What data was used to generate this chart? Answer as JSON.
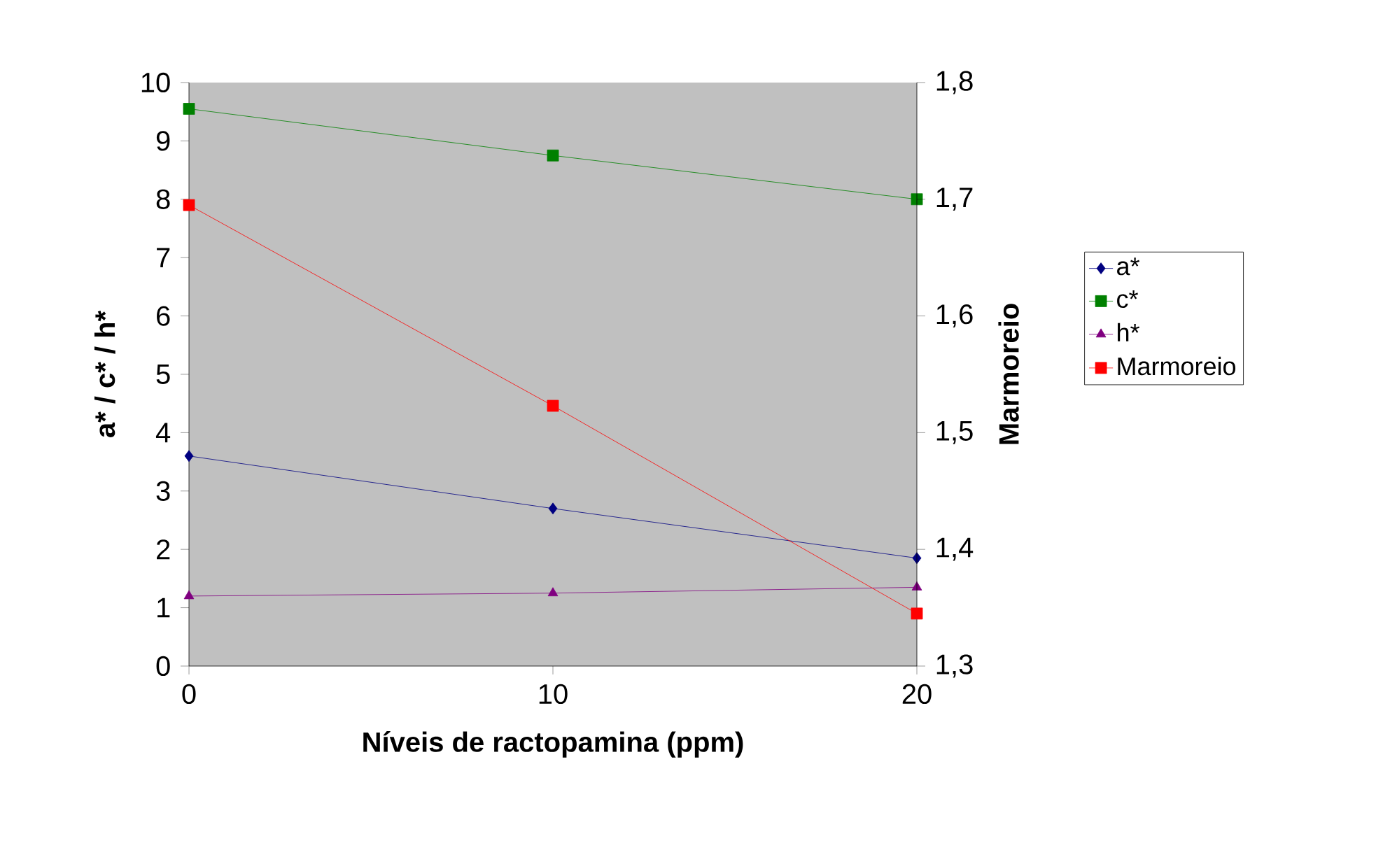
{
  "chart_data": {
    "type": "line",
    "xlabel": "Níveis de ractopamina (ppm)",
    "ylabel": "a* / c* / h*",
    "y2label": "Marmoreio",
    "x": [
      0,
      10,
      20
    ],
    "xlim": [
      0,
      20
    ],
    "xticks": [
      0,
      10,
      20
    ],
    "ylim": [
      0,
      10
    ],
    "yticks": [
      0,
      1,
      2,
      3,
      4,
      5,
      6,
      7,
      8,
      9,
      10
    ],
    "y2lim": [
      1.3,
      1.8
    ],
    "y2ticks": [
      {
        "value": 1.3,
        "label": "1,3"
      },
      {
        "value": 1.4,
        "label": "1,4"
      },
      {
        "value": 1.5,
        "label": "1,5"
      },
      {
        "value": 1.6,
        "label": "1,6"
      },
      {
        "value": 1.7,
        "label": "1,7"
      },
      {
        "value": 1.8,
        "label": "1,8"
      }
    ],
    "grid": false,
    "legend": "right",
    "line_style": "solid",
    "series": [
      {
        "name": "a*",
        "color": "#000080",
        "marker": "diamond",
        "values": [
          3.6,
          2.7,
          1.85
        ]
      },
      {
        "name": "c*",
        "color": "#008000",
        "marker": "square",
        "values": [
          9.55,
          8.75,
          8.0
        ]
      },
      {
        "name": "h*",
        "color": "#800080",
        "marker": "triangle",
        "values": [
          1.2,
          1.25,
          1.35
        ]
      },
      {
        "name": "Marmoreio",
        "color": "#ff0000",
        "marker": "square",
        "axis": "y2",
        "values": [
          1.695,
          1.523,
          1.345
        ]
      }
    ]
  }
}
